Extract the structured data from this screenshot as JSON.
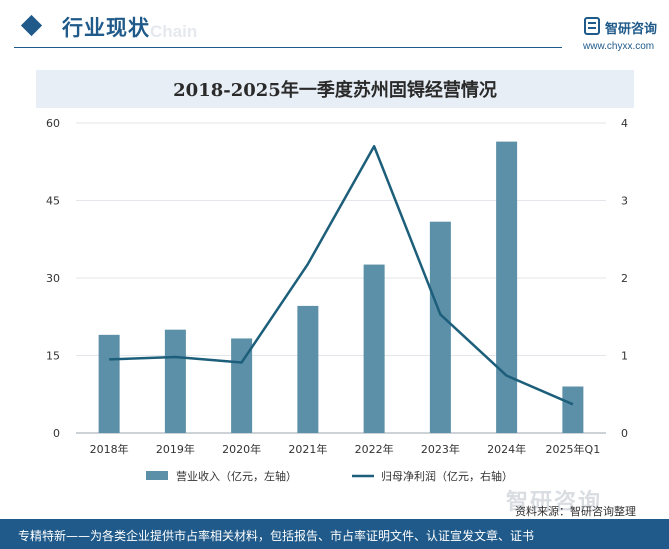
{
  "header": {
    "section_title": "行业现状",
    "watermark": "Chain",
    "brand_name": "智研咨询",
    "brand_url": "www.chyxx.com"
  },
  "colors": {
    "brand": "#1f5a8a",
    "bar": "#5c8fa8",
    "line": "#1d5f7a",
    "title_band": "#e7eef5"
  },
  "chart_data": {
    "type": "bar",
    "title": "2018-2025年一季度苏州固锝经营情况",
    "categories": [
      "2018年",
      "2019年",
      "2020年",
      "2021年",
      "2022年",
      "2023年",
      "2024年",
      "2025年Q1"
    ],
    "left_axis": {
      "min": 0,
      "max": 60,
      "ticks": [
        0,
        15,
        30,
        45,
        60
      ]
    },
    "right_axis": {
      "min": 0,
      "max": 4,
      "ticks": [
        0,
        1,
        2,
        3,
        4
      ]
    },
    "series": [
      {
        "name": "营业收入（亿元，左轴）",
        "type": "bar",
        "axis": "left",
        "values": [
          19.0,
          20.0,
          18.3,
          24.6,
          32.6,
          40.9,
          56.4,
          9.0
        ]
      },
      {
        "name": "归母净利润（亿元，右轴）",
        "type": "line",
        "axis": "right",
        "values": [
          0.95,
          0.98,
          0.91,
          2.18,
          3.7,
          1.53,
          0.74,
          0.37
        ]
      }
    ],
    "grid": true,
    "legend": "bottom"
  },
  "footer": {
    "logo": "智研咨询",
    "source": "资料来源：智研咨询整理",
    "tagline": "专精特新——为各类企业提供市占率相关材料，包括报告、市占率证明文件、认证宣发文章、证书"
  }
}
